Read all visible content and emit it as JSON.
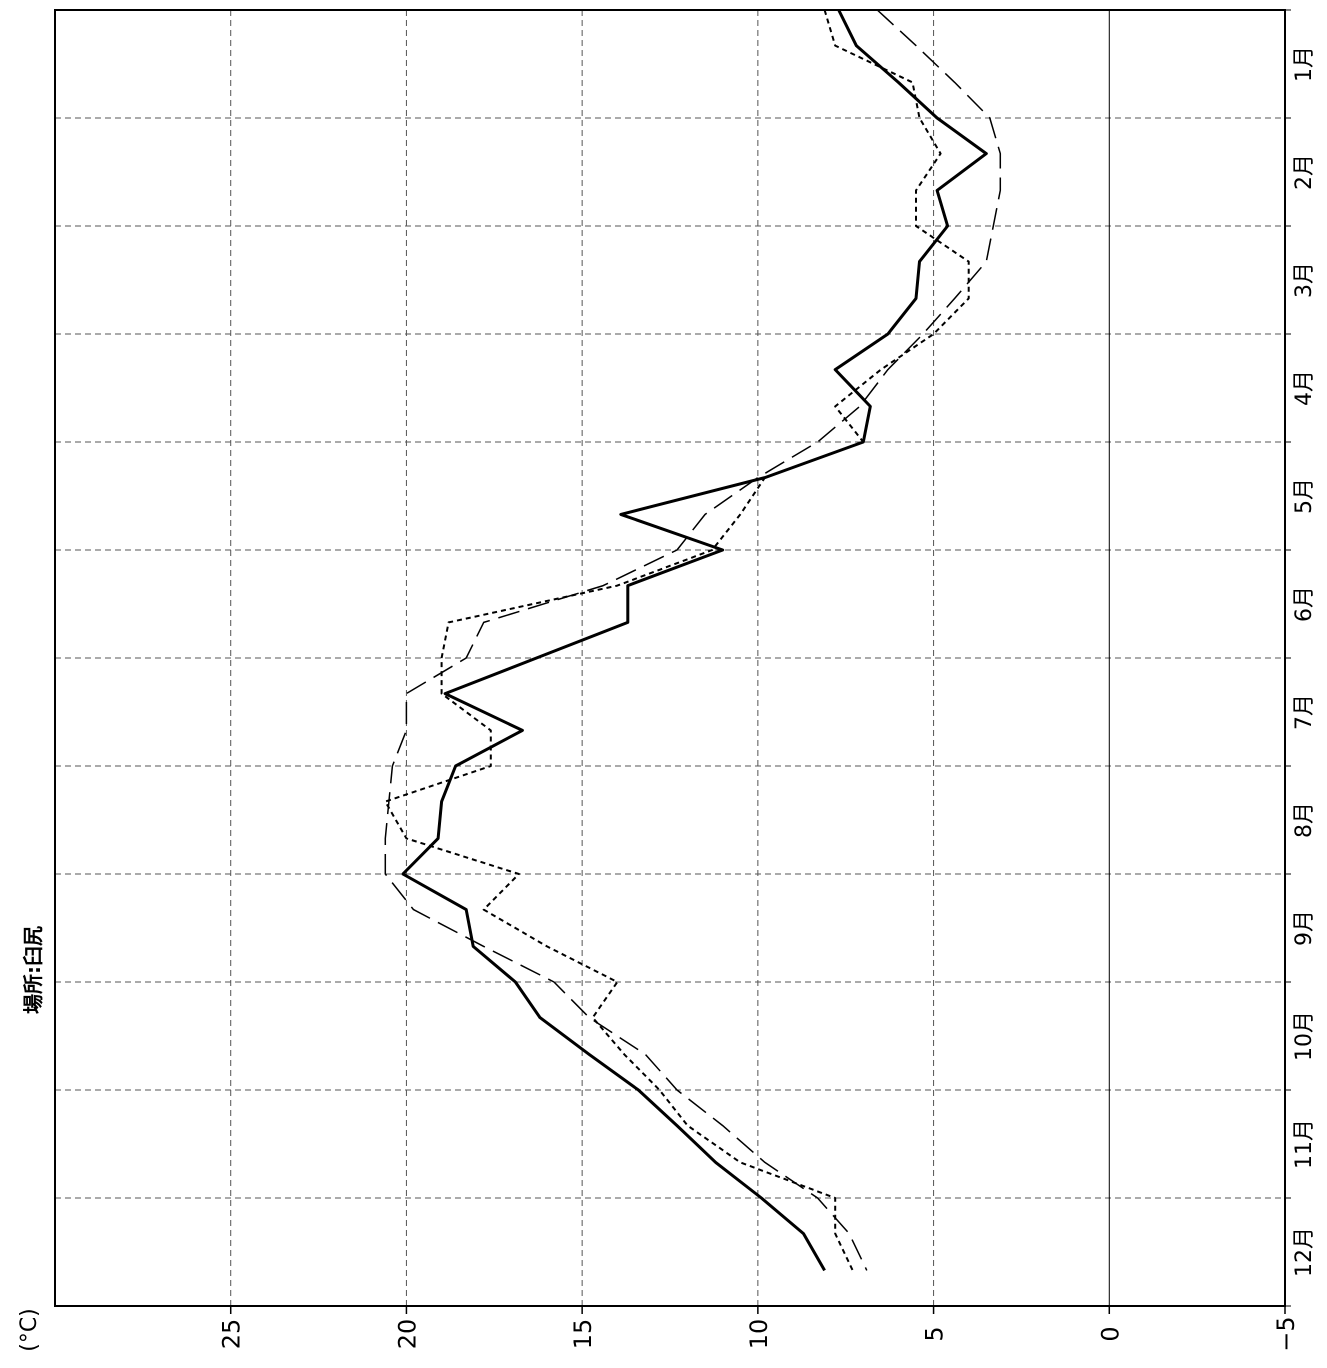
{
  "chart_data": {
    "type": "line",
    "location_label": "場所:臼尻",
    "unit_label": "(°C)",
    "value_axis": {
      "ticks": [
        "25",
        "20",
        "15",
        "10",
        "5",
        "0",
        "−5"
      ],
      "ylim": [
        -5,
        30
      ]
    },
    "month_axis": {
      "labels": [
        "1月",
        "2月",
        "3月",
        "4月",
        "5月",
        "6月",
        "7月",
        "8月",
        "9月",
        "10月",
        "11月",
        "12月"
      ]
    },
    "x_positions_month": [
      0.5,
      0.83,
      1.17,
      1.5,
      1.83,
      2.17,
      2.5,
      2.83,
      3.17,
      3.5,
      3.83,
      4.17,
      4.5,
      4.83,
      5.17,
      5.5,
      5.83,
      6.17,
      6.5,
      6.83,
      7.17,
      7.5,
      7.83,
      8.17,
      8.5,
      8.83,
      9.17,
      9.5,
      9.83,
      10.17,
      10.5,
      10.83,
      11.17,
      11.5,
      11.83,
      12.17
    ],
    "series": [
      {
        "style": "solid",
        "color": "#000000",
        "values": [
          7.7,
          7.2,
          6.0,
          4.9,
          3.5,
          4.9,
          4.6,
          5.4,
          5.5,
          6.3,
          7.8,
          6.8,
          7.0,
          9.8,
          13.9,
          11.0,
          13.7,
          13.7,
          16.3,
          18.9,
          16.7,
          18.6,
          19.0,
          19.1,
          20.1,
          18.3,
          18.1,
          16.9,
          16.2,
          14.8,
          13.4,
          12.3,
          11.2,
          9.9,
          8.7,
          8.1
        ]
      },
      {
        "style": "short-dash",
        "color": "#000000",
        "values": [
          8.1,
          7.8,
          5.6,
          5.4,
          4.8,
          5.5,
          5.5,
          4.0,
          4.0,
          5.0,
          6.5,
          7.8,
          7.0,
          9.8,
          10.5,
          11.3,
          14.0,
          18.8,
          19.0,
          19.0,
          17.6,
          17.6,
          20.6,
          20.0,
          16.8,
          17.8,
          16.0,
          14.0,
          14.7,
          13.8,
          12.8,
          12.0,
          10.5,
          7.8,
          7.8,
          7.3
        ]
      },
      {
        "style": "long-dash",
        "color": "#000000",
        "values": [
          6.6,
          5.5,
          4.4,
          3.4,
          3.1,
          3.1,
          3.3,
          3.5,
          4.4,
          5.3,
          6.3,
          7.1,
          8.3,
          10.0,
          11.5,
          12.3,
          14.4,
          17.8,
          18.3,
          20.0,
          20.0,
          20.4,
          20.5,
          20.6,
          20.6,
          19.8,
          17.8,
          15.8,
          14.8,
          13.2,
          12.3,
          11.0,
          9.8,
          8.3,
          7.4,
          6.9
        ]
      }
    ]
  }
}
